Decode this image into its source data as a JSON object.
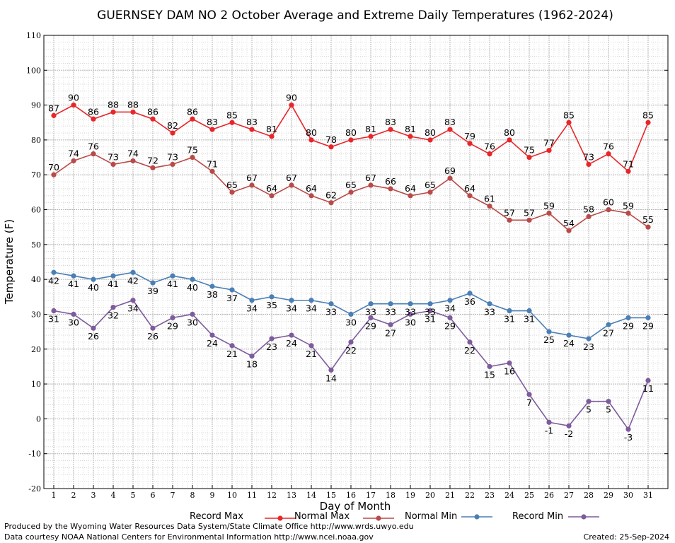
{
  "chart_data": {
    "type": "line",
    "title": "GUERNSEY DAM NO 2 October Average and Extreme Daily Temperatures (1962-2024)",
    "xlabel": "Day of Month",
    "ylabel": "Temperature (F)",
    "ylim": [
      -20,
      110
    ],
    "yticks": [
      -20,
      -10,
      0,
      10,
      20,
      30,
      40,
      50,
      60,
      70,
      80,
      90,
      100,
      110
    ],
    "grid": true,
    "legend_position": "bottom",
    "x": [
      1,
      2,
      3,
      4,
      5,
      6,
      7,
      8,
      9,
      10,
      11,
      12,
      13,
      14,
      15,
      16,
      17,
      18,
      19,
      20,
      21,
      22,
      23,
      24,
      25,
      26,
      27,
      28,
      29,
      30,
      31
    ],
    "series": [
      {
        "name": "Record Max",
        "color": "#e8262a",
        "label_side": "above",
        "values": [
          87,
          90,
          86,
          88,
          88,
          86,
          82,
          86,
          83,
          85,
          83,
          81,
          90,
          80,
          78,
          80,
          81,
          83,
          81,
          80,
          83,
          79,
          76,
          80,
          75,
          77,
          85,
          73,
          76,
          71,
          85
        ]
      },
      {
        "name": "Normal Max",
        "color": "#b94a48",
        "label_side": "above",
        "values": [
          70,
          74,
          76,
          73,
          74,
          72,
          73,
          75,
          71,
          65,
          67,
          64,
          67,
          64,
          62,
          65,
          67,
          66,
          64,
          65,
          69,
          64,
          61,
          57,
          57,
          59,
          54,
          58,
          60,
          59,
          55
        ]
      },
      {
        "name": "Normal Min",
        "color": "#4a7fb5",
        "label_side": "below",
        "values": [
          42,
          41,
          40,
          41,
          42,
          39,
          41,
          40,
          38,
          37,
          34,
          35,
          34,
          34,
          33,
          30,
          33,
          33,
          33,
          33,
          34,
          36,
          33,
          31,
          31,
          25,
          24,
          23,
          27,
          29,
          29
        ]
      },
      {
        "name": "Record Min",
        "color": "#7e5b9c",
        "label_side": "below",
        "values": [
          31,
          30,
          26,
          32,
          34,
          26,
          29,
          30,
          24,
          21,
          18,
          23,
          24,
          21,
          14,
          22,
          29,
          27,
          30,
          31,
          29,
          22,
          15,
          16,
          7,
          -1,
          -2,
          5,
          5,
          -3,
          11
        ]
      }
    ]
  },
  "footer": {
    "produced_by": "Produced by the Wyoming Water Resources Data System/State Climate Office http://www.wrds.uwyo.edu",
    "courtesy": "Data courtesy NOAA National Centers for Environmental Information http://www.ncei.noaa.gov",
    "created": "Created:  25-Sep-2024"
  }
}
